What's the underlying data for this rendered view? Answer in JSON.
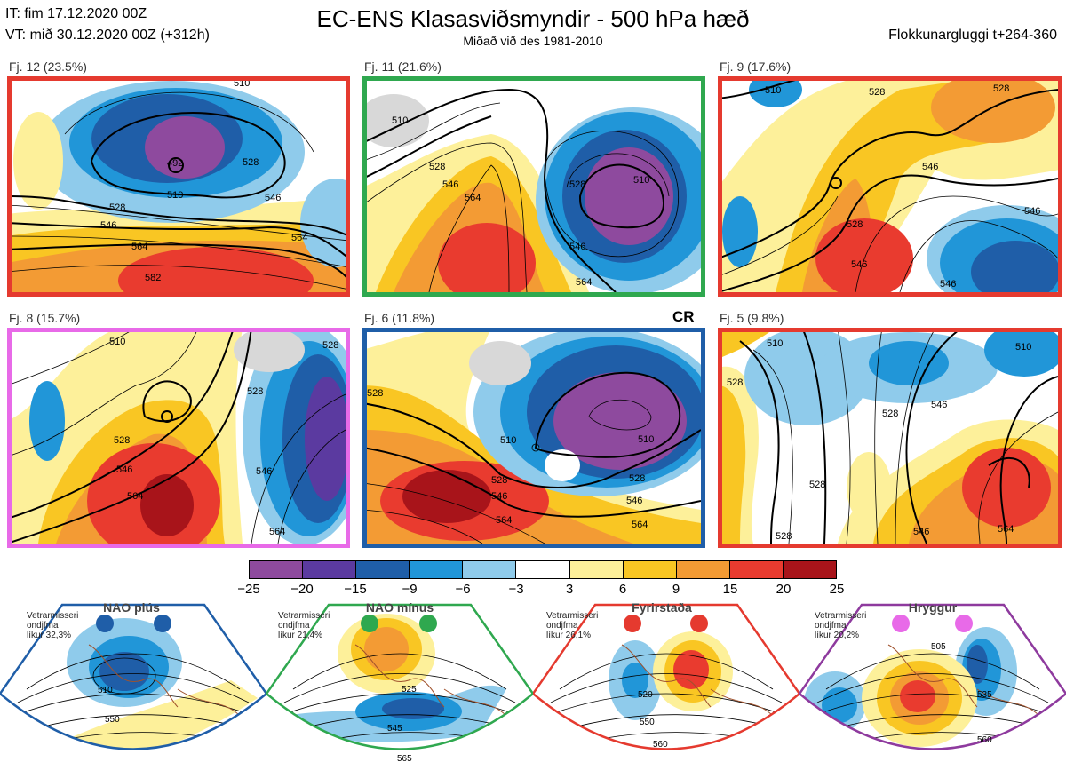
{
  "header": {
    "it_line": "IT: fim 17.12.2020 00Z",
    "vt_line": "VT: mið 30.12.2020 00Z  (+312h)",
    "title": "EC-ENS Klasasviðsmyndir - 500 hPa hæð",
    "subtitle": "Miðað við des 1981-2010",
    "window": "Flokkunargluggi t+264-360"
  },
  "panels": [
    {
      "label": "Fj. 12 (23.5%)",
      "border_color": "#e53a2f",
      "contours": [
        "510",
        "492",
        "528",
        "510",
        "528",
        "546",
        "546",
        "564",
        "564",
        "582"
      ]
    },
    {
      "label": "Fj. 11 (21.6%)",
      "border_color": "#2fa84f",
      "contours": [
        "510",
        "528",
        "546",
        "564",
        "528",
        "510",
        "546",
        "564"
      ]
    },
    {
      "label": "Fj. 9 (17.6%)",
      "border_color": "#e53a2f",
      "contours": [
        "510",
        "528",
        "528",
        "546",
        "528",
        "546",
        "546",
        "546"
      ]
    },
    {
      "label": "Fj. 8 (15.7%)",
      "border_color": "#e86ae8",
      "contours": [
        "510",
        "528",
        "528",
        "546",
        "546",
        "564",
        "564",
        "528"
      ]
    },
    {
      "label": "Fj. 6 (11.8%)",
      "border_color": "#1f5ea8",
      "contours": [
        "528",
        "510",
        "510",
        "528",
        "528",
        "546",
        "546",
        "564",
        "564"
      ],
      "tag": "CR"
    },
    {
      "label": "Fj. 5 (9.8%)",
      "border_color": "#e53a2f",
      "contours": [
        "510",
        "528",
        "528",
        "546",
        "510",
        "528",
        "528",
        "546",
        "564"
      ]
    }
  ],
  "colorbar": {
    "colors": [
      "#8e4a9e",
      "#5b3aa0",
      "#1f5ea8",
      "#2196d8",
      "#8fcbeb",
      "#ffffff",
      "#fdf09a",
      "#f9c623",
      "#f39b34",
      "#e93b2f",
      "#a8141a"
    ],
    "ticks": [
      "−25",
      "−20",
      "−15",
      "−9",
      "−6",
      "−3",
      "3",
      "6",
      "9",
      "15",
      "20",
      "25"
    ]
  },
  "regimes": [
    {
      "name": "NAO plús",
      "note": [
        "Vetrarmisseri",
        "ondjfma",
        "líkur 32,3%"
      ],
      "color": "#1f5ea8",
      "contours": [
        "510",
        "550"
      ]
    },
    {
      "name": "NAO mínus",
      "note": [
        "Vetrarmisseri",
        "ondjfma",
        "líkur 21,4%"
      ],
      "color": "#2fa84f",
      "contours": [
        "525",
        "545",
        "565"
      ]
    },
    {
      "name": "Fyrirstaða",
      "note": [
        "Vetrarmisseri",
        "ondjfma",
        "líkur 26,1%"
      ],
      "color": "#e53a2f",
      "contours": [
        "520",
        "550",
        "560"
      ]
    },
    {
      "name": "Hryggur",
      "note": [
        "Vetrarmisseri",
        "ondjfma",
        "líkur 20,2%"
      ],
      "color": "#e86ae8",
      "contours": [
        "505",
        "535",
        "560"
      ]
    }
  ]
}
